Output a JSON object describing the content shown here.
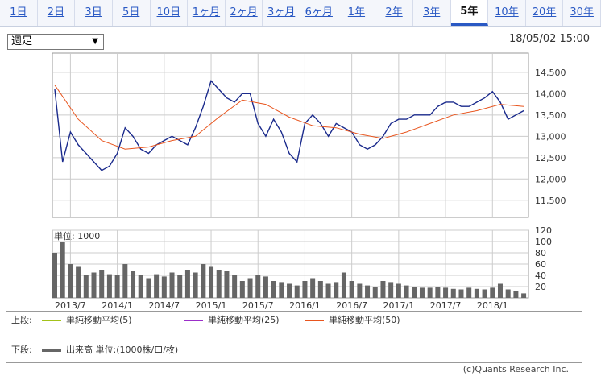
{
  "range_tabs": [
    {
      "label": "1日",
      "active": false
    },
    {
      "label": "2日",
      "active": false
    },
    {
      "label": "3日",
      "active": false
    },
    {
      "label": "5日",
      "active": false
    },
    {
      "label": "10日",
      "active": false
    },
    {
      "label": "1ヶ月",
      "active": false
    },
    {
      "label": "2ヶ月",
      "active": false
    },
    {
      "label": "3ヶ月",
      "active": false
    },
    {
      "label": "6ヶ月",
      "active": false
    },
    {
      "label": "1年",
      "active": false
    },
    {
      "label": "2年",
      "active": false
    },
    {
      "label": "3年",
      "active": false
    },
    {
      "label": "5年",
      "active": true
    },
    {
      "label": "10年",
      "active": false
    },
    {
      "label": "20年",
      "active": false
    },
    {
      "label": "30年",
      "active": false
    }
  ],
  "period_select": {
    "value": "週足"
  },
  "timestamp": "18/05/02 15:00",
  "chart_data": [
    {
      "type": "line",
      "title": "",
      "x_ticks": [
        "2013/7",
        "2014/1",
        "2014/7",
        "2015/1",
        "2015/7",
        "2016/1",
        "2016/7",
        "2017/1",
        "2017/7",
        "2018/1"
      ],
      "y_ticks": [
        "11,500",
        "12,000",
        "12,500",
        "13,000",
        "13,500",
        "14,000",
        "14,500"
      ],
      "ylim": [
        11100,
        14950
      ],
      "grid": true,
      "price_points": [
        [
          "2013/5",
          14100
        ],
        [
          "2013/6",
          12400
        ],
        [
          "2013/7",
          13100
        ],
        [
          "2013/8",
          12800
        ],
        [
          "2013/9",
          12600
        ],
        [
          "2013/10",
          12400
        ],
        [
          "2013/11",
          12200
        ],
        [
          "2013/12",
          12300
        ],
        [
          "2014/1",
          12600
        ],
        [
          "2014/2",
          13200
        ],
        [
          "2014/3",
          13000
        ],
        [
          "2014/4",
          12700
        ],
        [
          "2014/5",
          12600
        ],
        [
          "2014/6",
          12800
        ],
        [
          "2014/7",
          12900
        ],
        [
          "2014/8",
          13000
        ],
        [
          "2014/9",
          12900
        ],
        [
          "2014/10",
          12800
        ],
        [
          "2014/11",
          13200
        ],
        [
          "2014/12",
          13700
        ],
        [
          "2015/1",
          14300
        ],
        [
          "2015/2",
          14100
        ],
        [
          "2015/3",
          13900
        ],
        [
          "2015/4",
          13800
        ],
        [
          "2015/5",
          14000
        ],
        [
          "2015/6",
          14000
        ],
        [
          "2015/7",
          13300
        ],
        [
          "2015/8",
          13000
        ],
        [
          "2015/9",
          13400
        ],
        [
          "2015/10",
          13100
        ],
        [
          "2015/11",
          12600
        ],
        [
          "2015/12",
          12400
        ],
        [
          "2016/1",
          13300
        ],
        [
          "2016/2",
          13500
        ],
        [
          "2016/3",
          13300
        ],
        [
          "2016/4",
          13000
        ],
        [
          "2016/5",
          13300
        ],
        [
          "2016/6",
          13200
        ],
        [
          "2016/7",
          13100
        ],
        [
          "2016/8",
          12800
        ],
        [
          "2016/9",
          12700
        ],
        [
          "2016/10",
          12800
        ],
        [
          "2016/11",
          13000
        ],
        [
          "2016/12",
          13300
        ],
        [
          "2017/1",
          13400
        ],
        [
          "2017/2",
          13400
        ],
        [
          "2017/3",
          13500
        ],
        [
          "2017/4",
          13500
        ],
        [
          "2017/5",
          13500
        ],
        [
          "2017/6",
          13700
        ],
        [
          "2017/7",
          13800
        ],
        [
          "2017/8",
          13800
        ],
        [
          "2017/9",
          13700
        ],
        [
          "2017/10",
          13700
        ],
        [
          "2017/11",
          13800
        ],
        [
          "2017/12",
          13900
        ],
        [
          "2018/1",
          14050
        ],
        [
          "2018/2",
          13800
        ],
        [
          "2018/3",
          13400
        ],
        [
          "2018/4",
          13500
        ],
        [
          "2018/5",
          13600
        ]
      ],
      "ma_points": [
        [
          "2013/5",
          14200
        ],
        [
          "2013/8",
          13400
        ],
        [
          "2013/11",
          12900
        ],
        [
          "2014/2",
          12700
        ],
        [
          "2014/5",
          12750
        ],
        [
          "2014/8",
          12900
        ],
        [
          "2014/11",
          13000
        ],
        [
          "2015/2",
          13450
        ],
        [
          "2015/5",
          13850
        ],
        [
          "2015/8",
          13750
        ],
        [
          "2015/11",
          13450
        ],
        [
          "2016/2",
          13250
        ],
        [
          "2016/5",
          13200
        ],
        [
          "2016/8",
          13050
        ],
        [
          "2016/11",
          12950
        ],
        [
          "2017/2",
          13100
        ],
        [
          "2017/5",
          13300
        ],
        [
          "2017/8",
          13500
        ],
        [
          "2017/11",
          13600
        ],
        [
          "2018/2",
          13750
        ],
        [
          "2018/5",
          13700
        ]
      ]
    },
    {
      "type": "bar",
      "label": "単位: 1000",
      "y_ticks": [
        "20",
        "40",
        "60",
        "80",
        "100",
        "120"
      ],
      "ylim": [
        0,
        120
      ],
      "volume_points": [
        [
          "2013/5",
          80
        ],
        [
          "2013/6",
          100
        ],
        [
          "2013/7",
          60
        ],
        [
          "2013/8",
          55
        ],
        [
          "2013/9",
          40
        ],
        [
          "2013/10",
          45
        ],
        [
          "2013/11",
          50
        ],
        [
          "2013/12",
          42
        ],
        [
          "2014/1",
          40
        ],
        [
          "2014/2",
          60
        ],
        [
          "2014/3",
          48
        ],
        [
          "2014/4",
          40
        ],
        [
          "2014/5",
          35
        ],
        [
          "2014/6",
          42
        ],
        [
          "2014/7",
          38
        ],
        [
          "2014/8",
          45
        ],
        [
          "2014/9",
          40
        ],
        [
          "2014/10",
          50
        ],
        [
          "2014/11",
          45
        ],
        [
          "2014/12",
          60
        ],
        [
          "2015/1",
          55
        ],
        [
          "2015/2",
          50
        ],
        [
          "2015/3",
          48
        ],
        [
          "2015/4",
          40
        ],
        [
          "2015/5",
          30
        ],
        [
          "2015/6",
          35
        ],
        [
          "2015/7",
          40
        ],
        [
          "2015/8",
          38
        ],
        [
          "2015/9",
          30
        ],
        [
          "2015/10",
          28
        ],
        [
          "2015/11",
          25
        ],
        [
          "2015/12",
          22
        ],
        [
          "2016/1",
          30
        ],
        [
          "2016/2",
          35
        ],
        [
          "2016/3",
          30
        ],
        [
          "2016/4",
          25
        ],
        [
          "2016/5",
          28
        ],
        [
          "2016/6",
          45
        ],
        [
          "2016/7",
          30
        ],
        [
          "2016/8",
          25
        ],
        [
          "2016/9",
          22
        ],
        [
          "2016/10",
          20
        ],
        [
          "2016/11",
          30
        ],
        [
          "2016/12",
          28
        ],
        [
          "2017/1",
          25
        ],
        [
          "2017/2",
          22
        ],
        [
          "2017/3",
          20
        ],
        [
          "2017/4",
          18
        ],
        [
          "2017/5",
          18
        ],
        [
          "2017/6",
          20
        ],
        [
          "2017/7",
          18
        ],
        [
          "2017/8",
          16
        ],
        [
          "2017/9",
          15
        ],
        [
          "2017/10",
          18
        ],
        [
          "2017/11",
          16
        ],
        [
          "2017/12",
          15
        ],
        [
          "2018/1",
          18
        ],
        [
          "2018/2",
          25
        ],
        [
          "2018/3",
          15
        ],
        [
          "2018/4",
          12
        ],
        [
          "2018/5",
          8
        ]
      ]
    }
  ],
  "legend": {
    "upper_label": "上段:",
    "items": [
      {
        "label": "単純移動平均(5)",
        "color": "#a3c21a"
      },
      {
        "label": "単純移動平均(25)",
        "color": "#9b2ec9"
      },
      {
        "label": "単純移動平均(50)",
        "color": "#e8551e"
      }
    ],
    "lower_label": "下段:",
    "volume_label": "出来高 単位:(1000株/口/枚)"
  },
  "copyright": "(c)Quants Research Inc."
}
